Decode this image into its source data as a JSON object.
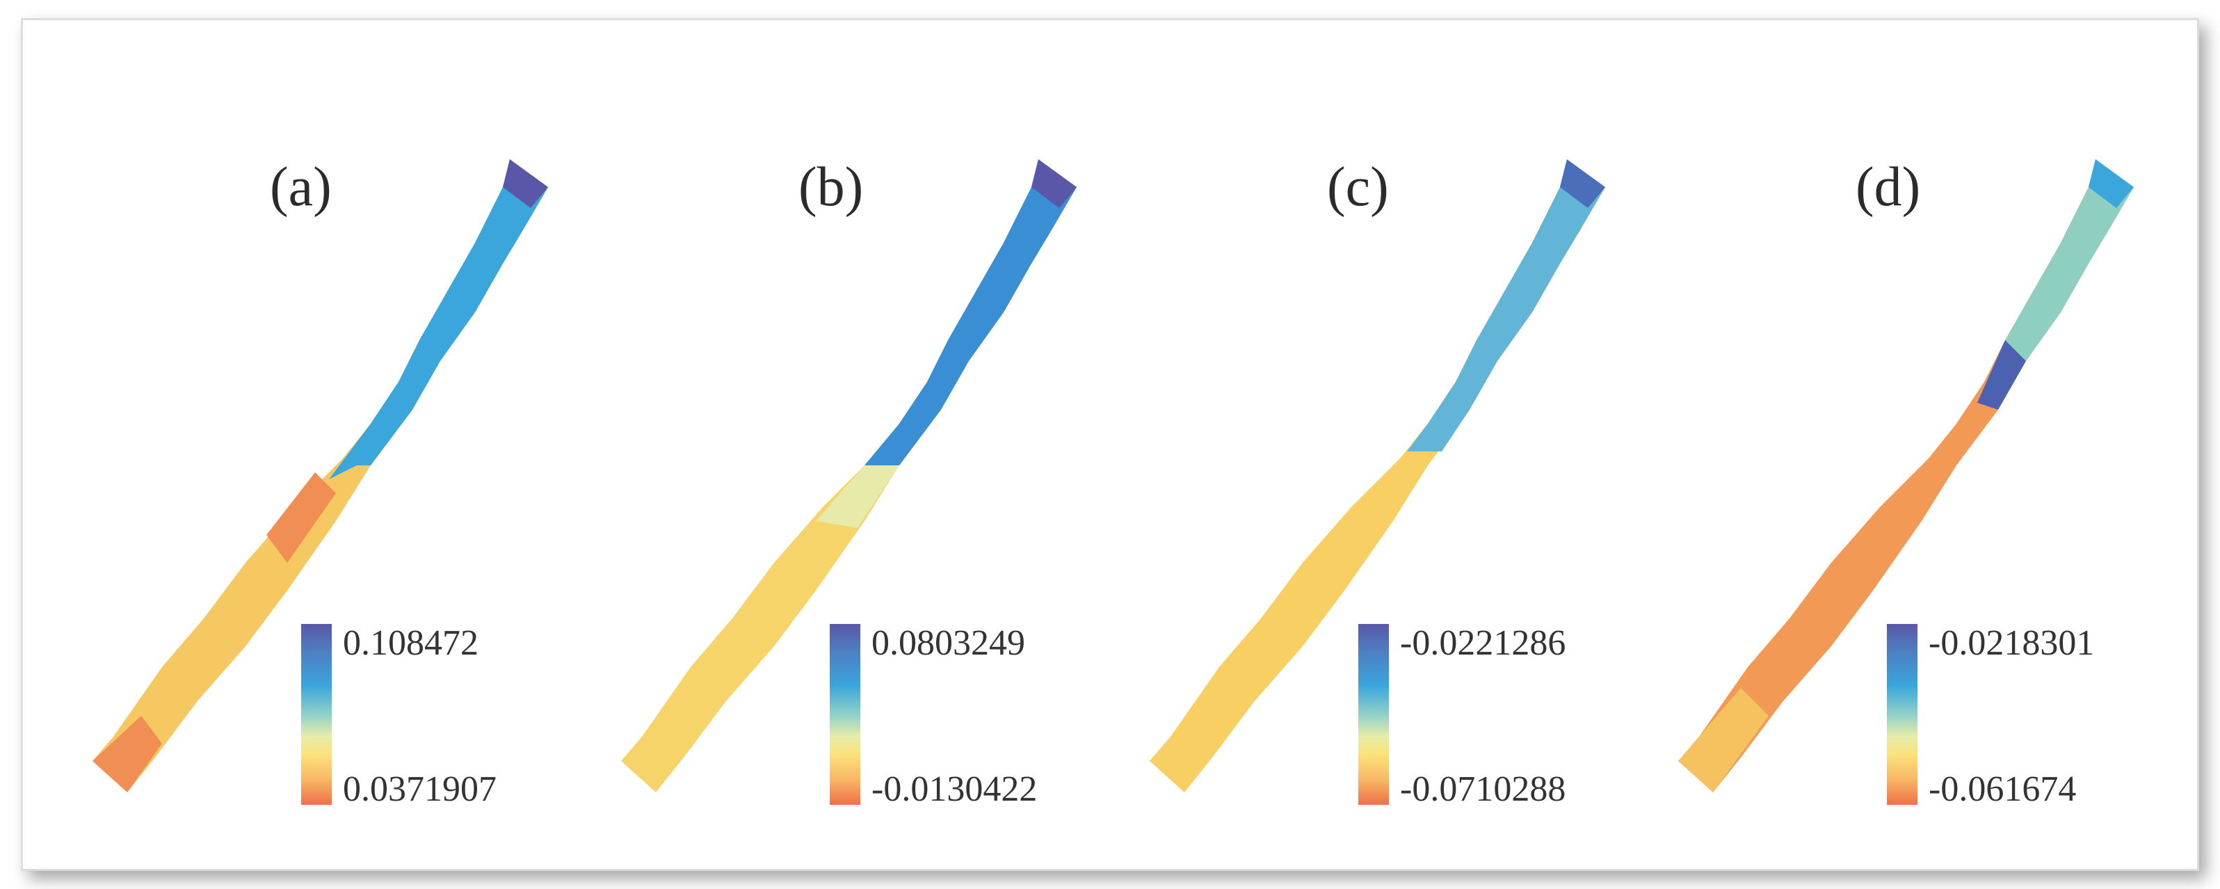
{
  "panels": [
    {
      "label": "(a)",
      "legend_max": "0.108472",
      "legend_min": "0.0371907"
    },
    {
      "label": "(b)",
      "legend_max": "0.0803249",
      "legend_min": "-0.0130422"
    },
    {
      "label": "(c)",
      "legend_max": "-0.0221286",
      "legend_min": "-0.0710288"
    },
    {
      "label": "(d)",
      "legend_max": "-0.0218301",
      "legend_min": "-0.061674"
    }
  ],
  "colorscale": [
    "#5a57a8",
    "#3aa6dc",
    "#e6ecaa",
    "#fbe37c",
    "#ef6f4a"
  ]
}
